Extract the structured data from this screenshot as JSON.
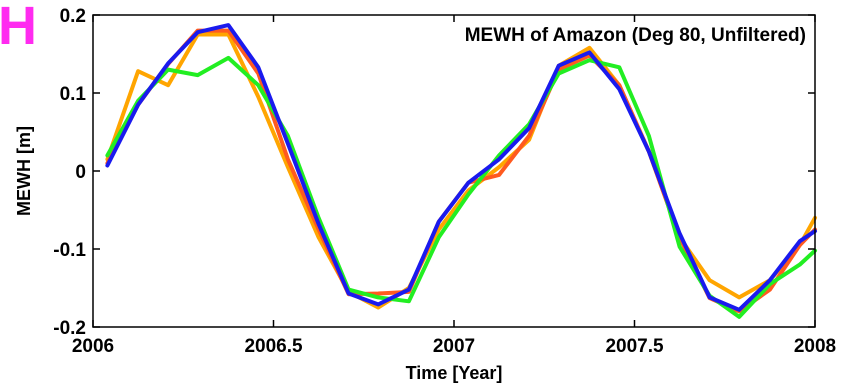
{
  "panel_label": "H",
  "colors": {
    "panel_label": "#ff2bf0",
    "axes": "#000000"
  },
  "chart_data": {
    "type": "line",
    "title": "MEWH of Amazon (Deg 80, Unfiltered)",
    "xlabel": "Time [Year]",
    "ylabel": "MEWH [m]",
    "xlim": [
      2006,
      2008
    ],
    "ylim": [
      -0.2,
      0.2
    ],
    "xticks": [
      2006,
      2006.5,
      2007,
      2007.5,
      2008
    ],
    "xtick_labels": [
      "2006",
      "2006.5",
      "2007",
      "2007.5",
      "2008"
    ],
    "yticks": [
      -0.2,
      -0.1,
      0,
      0.1,
      0.2
    ],
    "ytick_labels": [
      "-0.2",
      "-0.1",
      "0",
      "0.1",
      "0.2"
    ],
    "grid": false,
    "series": [
      {
        "color": "#ffa500",
        "x": [
          2006.04,
          2006.125,
          2006.208,
          2006.29,
          2006.375,
          2006.458,
          2006.54,
          2006.625,
          2006.708,
          2006.79,
          2006.875,
          2006.958,
          2007.04,
          2007.125,
          2007.208,
          2007.29,
          2007.375,
          2007.458,
          2007.54,
          2007.625,
          2007.708,
          2007.79,
          2007.875,
          2007.958,
          2008.0
        ],
        "y": [
          0.015,
          0.128,
          0.11,
          0.175,
          0.175,
          0.095,
          0.005,
          -0.085,
          -0.155,
          -0.175,
          -0.15,
          -0.075,
          -0.025,
          0.005,
          0.04,
          0.135,
          0.158,
          0.11,
          0.025,
          -0.085,
          -0.14,
          -0.162,
          -0.14,
          -0.095,
          -0.06
        ]
      },
      {
        "color": "#ff5a1f",
        "x": [
          2006.04,
          2006.125,
          2006.208,
          2006.29,
          2006.375,
          2006.458,
          2006.54,
          2006.625,
          2006.708,
          2006.79,
          2006.875,
          2006.958,
          2007.04,
          2007.125,
          2007.208,
          2007.29,
          2007.375,
          2007.458,
          2007.54,
          2007.625,
          2007.708,
          2007.79,
          2007.875,
          2007.958,
          2008.0
        ],
        "y": [
          0.01,
          0.085,
          0.137,
          0.18,
          0.18,
          0.125,
          0.015,
          -0.075,
          -0.158,
          -0.157,
          -0.155,
          -0.065,
          -0.015,
          -0.005,
          0.045,
          0.13,
          0.148,
          0.11,
          0.025,
          -0.085,
          -0.163,
          -0.18,
          -0.152,
          -0.095,
          -0.075
        ]
      },
      {
        "color": "#22ee22",
        "x": [
          2006.04,
          2006.125,
          2006.208,
          2006.29,
          2006.375,
          2006.458,
          2006.54,
          2006.625,
          2006.708,
          2006.79,
          2006.875,
          2006.958,
          2007.04,
          2007.125,
          2007.208,
          2007.29,
          2007.375,
          2007.458,
          2007.54,
          2007.625,
          2007.708,
          2007.79,
          2007.875,
          2007.958,
          2008.0
        ],
        "y": [
          0.02,
          0.09,
          0.13,
          0.123,
          0.145,
          0.11,
          0.045,
          -0.06,
          -0.152,
          -0.162,
          -0.167,
          -0.085,
          -0.03,
          0.02,
          0.06,
          0.125,
          0.142,
          0.133,
          0.045,
          -0.097,
          -0.16,
          -0.187,
          -0.145,
          -0.12,
          -0.102
        ]
      },
      {
        "color": "#1a1aee",
        "x": [
          2006.04,
          2006.125,
          2006.208,
          2006.29,
          2006.375,
          2006.458,
          2006.54,
          2006.625,
          2006.708,
          2006.79,
          2006.875,
          2006.958,
          2007.04,
          2007.125,
          2007.208,
          2007.29,
          2007.375,
          2007.458,
          2007.54,
          2007.625,
          2007.708,
          2007.79,
          2007.875,
          2007.958,
          2008.0
        ],
        "y": [
          0.007,
          0.085,
          0.138,
          0.178,
          0.187,
          0.133,
          0.035,
          -0.068,
          -0.157,
          -0.171,
          -0.152,
          -0.065,
          -0.015,
          0.015,
          0.055,
          0.135,
          0.152,
          0.105,
          0.025,
          -0.08,
          -0.162,
          -0.178,
          -0.14,
          -0.09,
          -0.077
        ]
      }
    ]
  }
}
